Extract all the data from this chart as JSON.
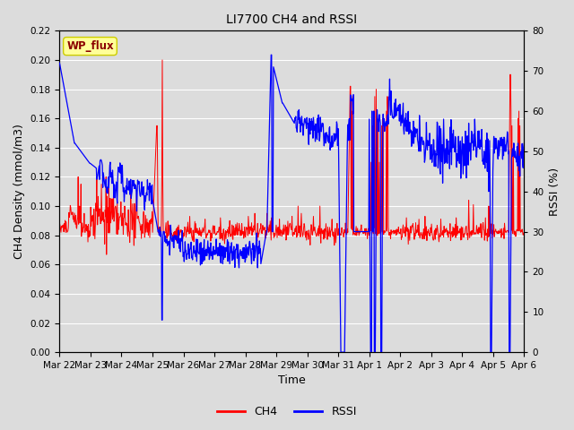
{
  "title": "LI7700 CH4 and RSSI",
  "xlabel": "Time",
  "ylabel_left": "CH4 Density (mmol/m3)",
  "ylabel_right": "RSSI (%)",
  "ch4_color": "#FF0000",
  "rssi_color": "#0000FF",
  "ylim_left": [
    0.0,
    0.22
  ],
  "ylim_right": [
    0,
    80
  ],
  "bg_color": "#DCDCDC",
  "legend_label_ch4": "CH4",
  "legend_label_rssi": "RSSI",
  "site_label": "WP_flux",
  "site_label_color": "#8B0000",
  "site_label_bg": "#FFFF99",
  "site_label_edge": "#CCCC00",
  "x_tick_labels": [
    "Mar 22",
    "Mar 23",
    "Mar 24",
    "Mar 25",
    "Mar 26",
    "Mar 27",
    "Mar 28",
    "Mar 29",
    "Mar 30",
    "Mar 31",
    "Apr 1",
    "Apr 2",
    "Apr 3",
    "Apr 4",
    "Apr 5",
    "Apr 6"
  ],
  "grid_color": "#FFFFFF",
  "tick_label_fontsize": 7.5,
  "axis_label_fontsize": 9,
  "title_fontsize": 10
}
